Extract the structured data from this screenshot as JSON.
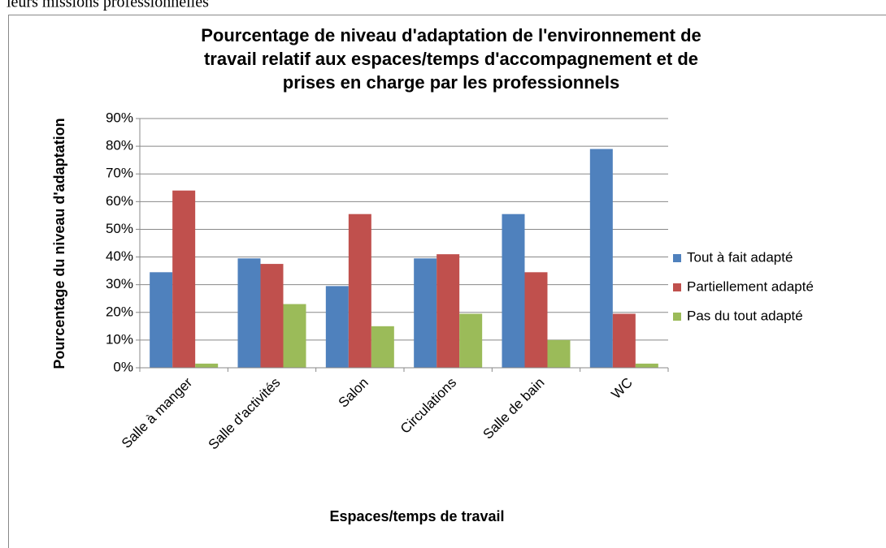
{
  "header_text": "leurs missions professionnelles",
  "chart_data": {
    "type": "bar",
    "title": [
      "Pourcentage de niveau d'adaptation de l'environnement de",
      "travail relatif aux espaces/temps d'accompagnement et de",
      "prises en charge par les professionnels"
    ],
    "x_label": "Espaces/temps de travail",
    "y_label": "Pourcentage du niveau d'adaptation",
    "categories": [
      "Salle à manger",
      "Salle d'activités",
      "Salon",
      "Circulations",
      "Salle de bain",
      "WC"
    ],
    "series": [
      {
        "name": "Tout à fait adapté",
        "color": "#4f81bd",
        "values": [
          34.5,
          39.5,
          29.5,
          39.5,
          55.5,
          79
        ]
      },
      {
        "name": "Partiellement adapté",
        "color": "#c0504d",
        "values": [
          64,
          37.5,
          55.5,
          41,
          34.5,
          19.5
        ]
      },
      {
        "name": "Pas du tout adapté",
        "color": "#9bbb59",
        "values": [
          1.5,
          23,
          15,
          19.5,
          10,
          1.5
        ]
      }
    ],
    "ylim": [
      0,
      90
    ],
    "yticks": [
      {
        "value": 0,
        "label": "0%"
      },
      {
        "value": 10,
        "label": "10%"
      },
      {
        "value": 20,
        "label": "20%"
      },
      {
        "value": 30,
        "label": "30%"
      },
      {
        "value": 40,
        "label": "40%"
      },
      {
        "value": 50,
        "label": "50%"
      },
      {
        "value": 60,
        "label": "60%"
      },
      {
        "value": 70,
        "label": "70%"
      },
      {
        "value": 80,
        "label": "80%"
      },
      {
        "value": 90,
        "label": "90%"
      }
    ],
    "grid": true,
    "legend": "right"
  }
}
